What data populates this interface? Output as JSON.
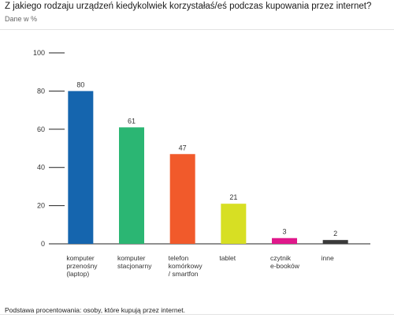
{
  "header": {
    "title": "Z jakiego rodzaju urządzeń kiedykolwiek korzystałaś/eś podczas kupowania przez internet?",
    "subtitle": "Dane w %"
  },
  "footer": {
    "note": "Podstawa procentowania: osoby, które kupują przez internet."
  },
  "chart_data": {
    "type": "bar",
    "title": "Z jakiego rodzaju urządzeń kiedykolwiek korzystałaś/eś podczas kupowania przez internet?",
    "subtitle": "Dane w %",
    "categories": [
      [
        "komputer",
        "przenośny",
        "(laptop)"
      ],
      [
        "komputer",
        "stacjonarny"
      ],
      [
        "telefon",
        "komórkowy",
        "/ smartfon"
      ],
      [
        "tablet"
      ],
      [
        "czytnik",
        "e-booków"
      ],
      [
        "inne"
      ]
    ],
    "values": [
      80,
      61,
      47,
      21,
      3,
      2
    ],
    "colors": [
      "#1565ae",
      "#2bb673",
      "#f15a2b",
      "#d7df23",
      "#e0188b",
      "#3a3a3a"
    ],
    "ylim": [
      0,
      100
    ],
    "yticks": [
      0,
      20,
      40,
      60,
      80,
      100
    ],
    "grid": false,
    "legend": "none"
  }
}
